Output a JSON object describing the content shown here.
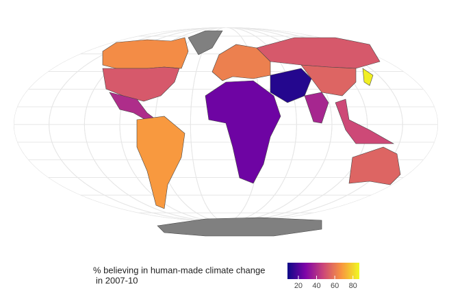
{
  "map": {
    "regions": [
      65,
      52,
      40,
      68,
      62,
      52,
      12,
      25,
      38,
      55,
      85,
      48,
      55
    ],
    "colorscale": [
      "#0d0887",
      "#7e03a8",
      "#cc4778",
      "#f89540",
      "#f0f921"
    ],
    "no_data_color": "#808080"
  },
  "legend": {
    "title": [
      "%   believing in human-made climate change",
      "in 2007-10"
    ],
    "lim": [
      8,
      87
    ],
    "ticks": [
      20,
      40,
      60,
      80
    ]
  }
}
